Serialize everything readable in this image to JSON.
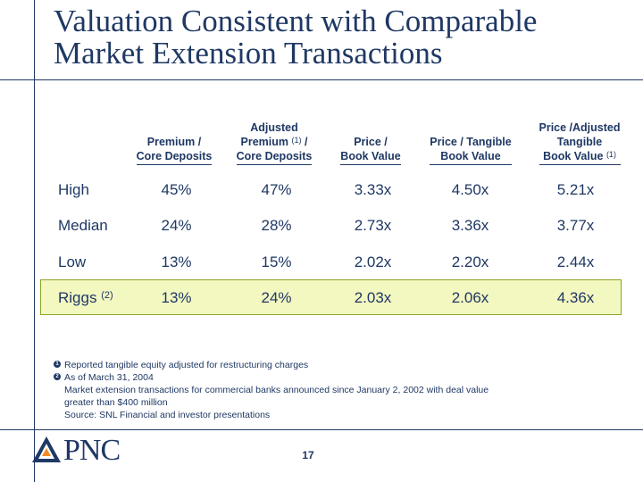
{
  "title": {
    "line1": "Valuation Consistent with Comparable",
    "line2": "Market Extension Transactions"
  },
  "columns": [
    {
      "line1": "",
      "line2": "Premium /",
      "line3": "Core Deposits",
      "sup": ""
    },
    {
      "line1": "Adjusted",
      "line2": "Premium",
      "line3": "Core Deposits",
      "sup": "(1)",
      "line2_suffix": " /"
    },
    {
      "line1": "",
      "line2": "Price /",
      "line3": "Book Value",
      "sup": ""
    },
    {
      "line1": "",
      "line2": "Price / Tangible",
      "line3": "Book Value",
      "sup": ""
    },
    {
      "line1": "Price /Adjusted",
      "line2": "Tangible",
      "line3": "Book Value",
      "sup": "(1)"
    }
  ],
  "rows": [
    {
      "label": "High",
      "sup": "",
      "values": [
        "45%",
        "47%",
        "3.33x",
        "4.50x",
        "5.21x"
      ]
    },
    {
      "label": "Median",
      "sup": "",
      "values": [
        "24%",
        "28%",
        "2.73x",
        "3.36x",
        "3.77x"
      ]
    },
    {
      "label": "Low",
      "sup": "",
      "values": [
        "13%",
        "15%",
        "2.02x",
        "2.20x",
        "2.44x"
      ]
    },
    {
      "label": "Riggs",
      "sup": "(2)",
      "values": [
        "13%",
        "24%",
        "2.03x",
        "2.06x",
        "4.36x"
      ]
    }
  ],
  "footnotes": {
    "marker1": "1",
    "note1": "Reported tangible equity adjusted for restructuring charges",
    "marker2": "2",
    "note2": "As of March 31, 2004",
    "line3": "Market extension transactions for commercial banks announced since January 2, 2002 with deal value",
    "line4": "greater than $400 million",
    "line5": "Source: SNL Financial and investor presentations"
  },
  "logo": {
    "text": "PNC",
    "color": "#1f3864"
  },
  "page_number": "17",
  "colors": {
    "navy": "#1f3864",
    "highlight_fill": "#f3f7c0",
    "highlight_border": "#8aa626"
  }
}
